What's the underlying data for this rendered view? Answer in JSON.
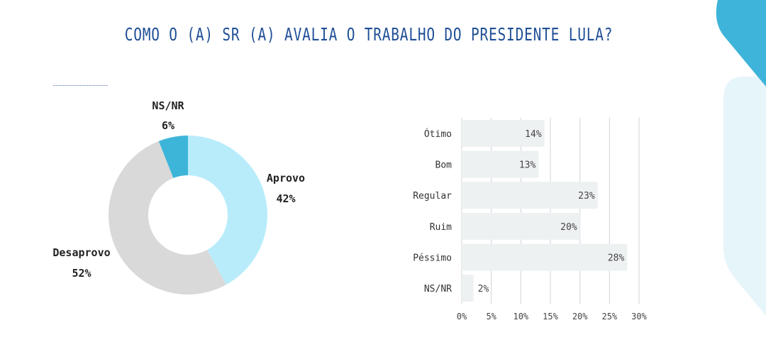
{
  "title": "COMO O (A) SR (A) AVALIA O TRABALHO DO PRESIDENTE LULA?",
  "colors": {
    "title": "#1f4f96",
    "aprovo": "#b9ecfb",
    "desaprovo": "#d9d9d9",
    "nsnr": "#3db5d9",
    "bar": "#eef1f2",
    "deco_dark": "#3fb4da",
    "deco_light": "#e6f5fa"
  },
  "chart_data": [
    {
      "type": "pie",
      "donut": true,
      "slices": [
        {
          "label": "Aprovo",
          "value": 42,
          "value_label": "42%"
        },
        {
          "label": "Desaprovo",
          "value": 52,
          "value_label": "52%"
        },
        {
          "label": "NS/NR",
          "value": 6,
          "value_label": "6%"
        }
      ]
    },
    {
      "type": "bar",
      "orientation": "horizontal",
      "categories": [
        "Ótimo",
        "Bom",
        "Regular",
        "Ruim",
        "Péssimo",
        "NS/NR"
      ],
      "values": [
        14,
        13,
        23,
        20,
        28,
        2
      ],
      "value_labels": [
        "14%",
        "13%",
        "23%",
        "20%",
        "28%",
        "2%"
      ],
      "xlim": [
        0,
        30
      ],
      "xticks": [
        "0%",
        "5%",
        "10%",
        "15%",
        "20%",
        "25%",
        "30%"
      ],
      "grid": true
    }
  ]
}
